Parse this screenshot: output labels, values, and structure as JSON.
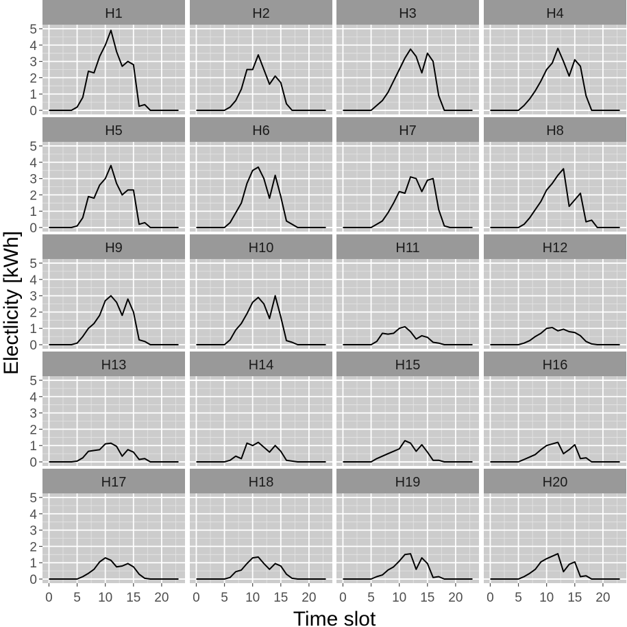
{
  "chart_data": {
    "type": "line",
    "facet_layout": "5 rows x 4 columns",
    "xlabel": "Time slot",
    "ylabel": "Electlicity [kWh]",
    "xlim": [
      -1.15,
      24.15
    ],
    "ylim": [
      -0.25,
      5.25
    ],
    "x_ticks": [
      0,
      5,
      10,
      15,
      20
    ],
    "y_ticks": [
      0,
      1,
      2,
      3,
      4,
      5
    ],
    "grid": true,
    "colors": {
      "panel_background": "#cccccc",
      "strip_background": "#999999",
      "grid_major": "#ffffff",
      "grid_minor": "#e5e5e5",
      "line": "#000000"
    },
    "x": [
      0,
      1,
      2,
      3,
      4,
      5,
      6,
      7,
      8,
      9,
      10,
      11,
      12,
      13,
      14,
      15,
      16,
      17,
      18,
      19,
      20,
      21,
      22,
      23
    ],
    "series": [
      {
        "name": "H1",
        "values": [
          0,
          0,
          0,
          0,
          0,
          0.2,
          0.8,
          2.4,
          2.3,
          3.3,
          4.0,
          4.9,
          3.6,
          2.7,
          3.0,
          2.8,
          0.25,
          0.35,
          0,
          0,
          0,
          0,
          0,
          0
        ]
      },
      {
        "name": "H2",
        "values": [
          0,
          0,
          0,
          0,
          0,
          0,
          0.2,
          0.6,
          1.3,
          2.5,
          2.5,
          3.4,
          2.5,
          1.6,
          2.1,
          1.7,
          0.4,
          0,
          0,
          0,
          0,
          0,
          0,
          0
        ]
      },
      {
        "name": "H3",
        "values": [
          0,
          0,
          0,
          0,
          0,
          0,
          0.3,
          0.6,
          1.1,
          1.8,
          2.5,
          3.2,
          3.75,
          3.3,
          2.3,
          3.5,
          3.0,
          0.9,
          0,
          0,
          0,
          0,
          0,
          0
        ]
      },
      {
        "name": "H4",
        "values": [
          0,
          0,
          0,
          0,
          0,
          0,
          0.3,
          0.7,
          1.2,
          1.8,
          2.5,
          2.9,
          3.8,
          3.0,
          2.1,
          3.1,
          2.7,
          0.9,
          0,
          0,
          0,
          0,
          0,
          0
        ]
      },
      {
        "name": "H5",
        "values": [
          0,
          0,
          0,
          0,
          0,
          0.1,
          0.6,
          1.9,
          1.8,
          2.6,
          3.0,
          3.8,
          2.7,
          2.0,
          2.3,
          2.3,
          0.2,
          0.3,
          0,
          0,
          0,
          0,
          0,
          0
        ]
      },
      {
        "name": "H6",
        "values": [
          0,
          0,
          0,
          0,
          0,
          0,
          0.3,
          0.9,
          1.5,
          2.7,
          3.5,
          3.7,
          3.0,
          1.8,
          3.2,
          1.9,
          0.4,
          0.2,
          0,
          0,
          0,
          0,
          0,
          0
        ]
      },
      {
        "name": "H7",
        "values": [
          0,
          0,
          0,
          0,
          0,
          0,
          0.2,
          0.4,
          0.9,
          1.5,
          2.2,
          2.1,
          3.1,
          3.0,
          2.2,
          2.9,
          3.0,
          1.1,
          0.1,
          0,
          0,
          0,
          0,
          0
        ]
      },
      {
        "name": "H8",
        "values": [
          0,
          0,
          0,
          0,
          0,
          0,
          0.2,
          0.6,
          1.1,
          1.6,
          2.3,
          2.7,
          3.2,
          3.6,
          1.3,
          1.7,
          2.1,
          0.35,
          0.45,
          0,
          0,
          0,
          0,
          0
        ]
      },
      {
        "name": "H9",
        "values": [
          0,
          0,
          0,
          0,
          0,
          0.1,
          0.5,
          1.0,
          1.3,
          1.8,
          2.7,
          3.0,
          2.6,
          1.8,
          2.8,
          2.0,
          0.3,
          0.2,
          0,
          0,
          0,
          0,
          0,
          0
        ]
      },
      {
        "name": "H10",
        "values": [
          0,
          0,
          0,
          0,
          0,
          0,
          0.3,
          0.9,
          1.3,
          1.9,
          2.6,
          2.9,
          2.5,
          1.6,
          3.0,
          1.7,
          0.25,
          0.15,
          0,
          0,
          0,
          0,
          0,
          0
        ]
      },
      {
        "name": "H11",
        "values": [
          0,
          0,
          0,
          0,
          0,
          0,
          0.2,
          0.7,
          0.65,
          0.7,
          1.0,
          1.1,
          0.8,
          0.35,
          0.55,
          0.45,
          0.15,
          0.1,
          0,
          0,
          0,
          0,
          0,
          0
        ]
      },
      {
        "name": "H12",
        "values": [
          0,
          0,
          0,
          0,
          0,
          0,
          0.1,
          0.25,
          0.5,
          0.7,
          1.0,
          1.05,
          0.85,
          0.95,
          0.8,
          0.75,
          0.55,
          0.2,
          0.05,
          0,
          0,
          0,
          0,
          0
        ]
      },
      {
        "name": "H13",
        "values": [
          0,
          0,
          0,
          0,
          0,
          0.05,
          0.25,
          0.65,
          0.7,
          0.75,
          1.1,
          1.15,
          0.95,
          0.35,
          0.75,
          0.6,
          0.15,
          0.2,
          0,
          0,
          0,
          0,
          0,
          0
        ]
      },
      {
        "name": "H14",
        "values": [
          0,
          0,
          0,
          0,
          0,
          0,
          0.1,
          0.35,
          0.2,
          1.15,
          1.0,
          1.2,
          0.9,
          0.6,
          1.0,
          0.65,
          0.1,
          0.05,
          0,
          0,
          0,
          0,
          0,
          0
        ]
      },
      {
        "name": "H15",
        "values": [
          0,
          0,
          0,
          0,
          0,
          0,
          0.2,
          0.35,
          0.5,
          0.65,
          0.8,
          1.3,
          1.15,
          0.65,
          1.05,
          0.6,
          0.1,
          0.1,
          0,
          0,
          0,
          0,
          0,
          0
        ]
      },
      {
        "name": "H16",
        "values": [
          0,
          0,
          0,
          0,
          0,
          0,
          0.15,
          0.3,
          0.45,
          0.75,
          1.0,
          1.1,
          1.2,
          0.5,
          0.75,
          1.05,
          0.2,
          0.25,
          0,
          0,
          0,
          0,
          0,
          0
        ]
      },
      {
        "name": "H17",
        "values": [
          0,
          0,
          0,
          0,
          0,
          0,
          0.15,
          0.35,
          0.6,
          1.05,
          1.3,
          1.15,
          0.75,
          0.8,
          0.95,
          0.75,
          0.3,
          0.05,
          0,
          0,
          0,
          0,
          0,
          0
        ]
      },
      {
        "name": "H18",
        "values": [
          0,
          0,
          0,
          0,
          0,
          0,
          0.1,
          0.45,
          0.55,
          0.95,
          1.3,
          1.35,
          0.95,
          0.6,
          0.95,
          0.8,
          0.3,
          0.05,
          0,
          0,
          0,
          0,
          0,
          0
        ]
      },
      {
        "name": "H19",
        "values": [
          0,
          0,
          0,
          0,
          0,
          0,
          0.15,
          0.25,
          0.55,
          0.75,
          1.1,
          1.5,
          1.55,
          0.6,
          1.3,
          0.95,
          0.1,
          0.15,
          0,
          0,
          0,
          0,
          0,
          0
        ]
      },
      {
        "name": "H20",
        "values": [
          0,
          0,
          0,
          0,
          0,
          0,
          0.15,
          0.35,
          0.6,
          1.05,
          1.25,
          1.4,
          1.55,
          0.45,
          0.9,
          1.05,
          0.15,
          0.2,
          0,
          0,
          0,
          0,
          0,
          0
        ]
      }
    ]
  }
}
